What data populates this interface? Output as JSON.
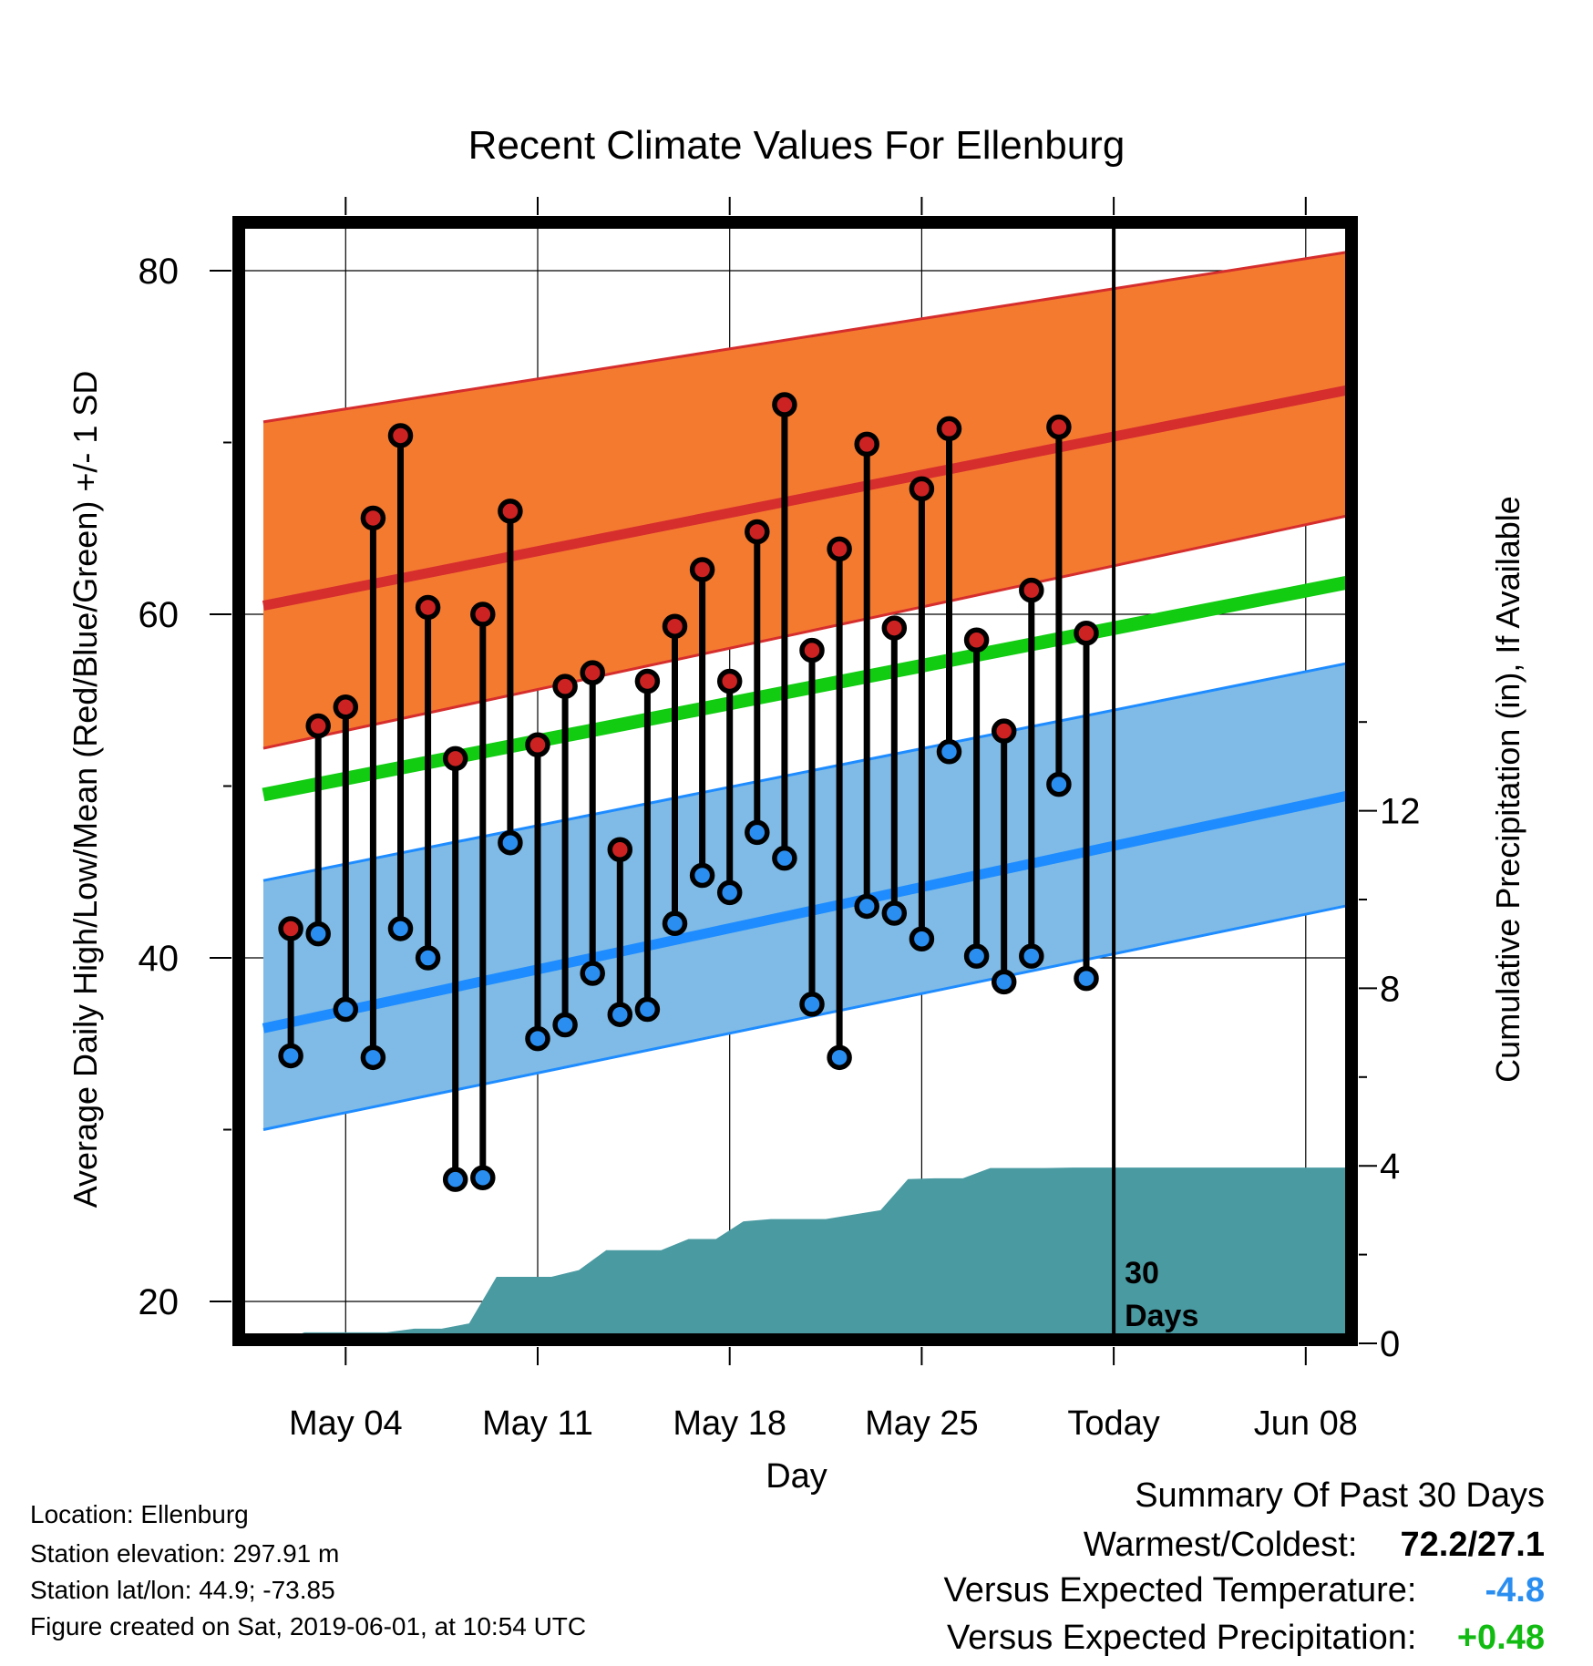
{
  "chart_data": {
    "type": "line",
    "title": "Recent Climate Values For Ellenburg",
    "xlabel": "Day",
    "ylabel": "Average Daily High/Low/Mean (Red/Blue/Green) +/- 1 SD",
    "y2label": "Cumulative Precipitation (in), If Available",
    "ylim": [
      18,
      83.5
    ],
    "y2lim": [
      0,
      24
    ],
    "y_ticks": [
      "20",
      "40",
      "60",
      "80"
    ],
    "y2_ticks": [
      "0",
      "4",
      "8",
      "12"
    ],
    "x_tick_labels": [
      {
        "day": 4,
        "label": "May 04"
      },
      {
        "day": 11,
        "label": "May 11"
      },
      {
        "day": 18,
        "label": "May 18"
      },
      {
        "day": 25,
        "label": "May 25"
      },
      {
        "day": 32,
        "label": "Today"
      },
      {
        "day": 39,
        "label": "Jun 08"
      }
    ],
    "today_marker": {
      "day": 32,
      "label_line1": "30",
      "label_line2": "Days"
    },
    "normal_high": {
      "x": [
        1,
        41
      ],
      "mean": [
        60.5,
        73.2
      ],
      "upper": [
        71.2,
        81.2
      ],
      "lower": [
        52.2,
        65.9
      ],
      "color": "#d62d2d",
      "band_color": "#f47a30"
    },
    "normal_low": {
      "x": [
        1,
        41
      ],
      "mean": [
        35.9,
        49.6
      ],
      "upper": [
        44.5,
        57.3
      ],
      "lower": [
        30.0,
        43.2
      ],
      "color": "#1e8cff",
      "band_color": "#7fbbe6"
    },
    "normal_mean": {
      "x": [
        1,
        41
      ],
      "mean": [
        49.5,
        62.0
      ],
      "color": "#11cc11"
    },
    "daily": {
      "days": [
        2,
        3,
        4,
        5,
        6,
        7,
        8,
        9,
        10,
        11,
        12,
        13,
        14,
        15,
        16,
        17,
        18,
        19,
        20,
        21,
        22,
        23,
        24,
        25,
        26,
        27,
        28,
        29,
        30,
        31
      ],
      "highs": [
        41.7,
        53.5,
        54.6,
        65.6,
        70.4,
        60.4,
        51.6,
        60.0,
        66.0,
        52.4,
        55.8,
        56.6,
        46.3,
        56.1,
        59.3,
        62.6,
        56.1,
        64.8,
        72.2,
        57.9,
        63.8,
        69.9,
        59.2,
        67.3,
        70.8,
        58.5,
        53.2,
        61.4,
        70.9,
        58.9
      ],
      "lows": [
        34.3,
        41.4,
        37.0,
        34.2,
        41.7,
        40.0,
        27.1,
        27.2,
        46.7,
        35.3,
        36.1,
        39.1,
        36.7,
        37.0,
        42.0,
        44.8,
        43.8,
        47.3,
        45.8,
        37.3,
        34.2,
        43.0,
        42.6,
        41.1,
        52.0,
        40.1,
        38.6,
        40.1,
        50.1,
        38.8
      ],
      "high_color": "#cc2222",
      "low_color": "#2a8ef0"
    },
    "cumulative_precip": {
      "x": [
        1.5,
        2.5,
        3.5,
        4.5,
        5.5,
        6.5,
        7.5,
        8.5,
        9.5,
        10.5,
        11.5,
        12.5,
        13.5,
        14.5,
        15.5,
        16.5,
        17.5,
        18.5,
        19.5,
        20.5,
        21.5,
        22.5,
        23.5,
        24.5,
        25.5,
        26.5,
        27.5,
        28.5,
        29.5,
        30.5,
        31.5,
        41
      ],
      "y": [
        0.0,
        0.25,
        0.25,
        0.25,
        0.25,
        0.33,
        0.33,
        0.45,
        1.5,
        1.5,
        1.5,
        1.65,
        2.1,
        2.1,
        2.1,
        2.35,
        2.35,
        2.75,
        2.8,
        2.8,
        2.8,
        2.9,
        3.0,
        3.7,
        3.72,
        3.72,
        3.95,
        3.95,
        3.95,
        3.96,
        3.96,
        3.96
      ],
      "color": "#4a9aa2"
    }
  },
  "footer": {
    "location": "Location: Ellenburg",
    "elevation": "Station elevation: 297.91 m",
    "latlon": "Station lat/lon: 44.9; -73.85",
    "created": "Figure created on Sat, 2019-06-01, at 10:54 UTC"
  },
  "summary": {
    "title": "Summary Of Past 30 Days",
    "warmest_label": "Warmest/Coldest:",
    "warmest_value": "72.2/27.1",
    "temp_label": "Versus Expected Temperature:",
    "temp_value": "-4.8",
    "temp_color": "#2a8ef0",
    "precip_label": "Versus Expected Precipitation:",
    "precip_value": "+0.48",
    "precip_color": "#11bb11"
  }
}
